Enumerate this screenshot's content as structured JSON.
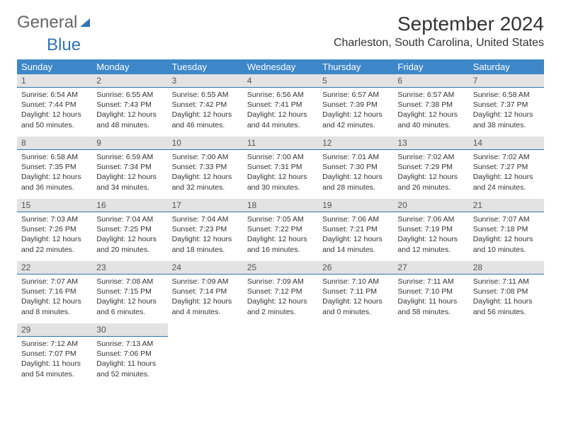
{
  "brand": {
    "text1": "General",
    "text2": "Blue"
  },
  "title": "September 2024",
  "location": "Charleston, South Carolina, United States",
  "colors": {
    "header_bg": "#3d87c9",
    "daynum_bg": "#e3e3e3",
    "divider": "#2f73b5",
    "text": "#333333",
    "background": "#ffffff"
  },
  "day_headers": [
    "Sunday",
    "Monday",
    "Tuesday",
    "Wednesday",
    "Thursday",
    "Friday",
    "Saturday"
  ],
  "days": [
    {
      "n": 1,
      "sunrise": "6:54 AM",
      "sunset": "7:44 PM",
      "dl_h": 12,
      "dl_m": 50
    },
    {
      "n": 2,
      "sunrise": "6:55 AM",
      "sunset": "7:43 PM",
      "dl_h": 12,
      "dl_m": 48
    },
    {
      "n": 3,
      "sunrise": "6:55 AM",
      "sunset": "7:42 PM",
      "dl_h": 12,
      "dl_m": 46
    },
    {
      "n": 4,
      "sunrise": "6:56 AM",
      "sunset": "7:41 PM",
      "dl_h": 12,
      "dl_m": 44
    },
    {
      "n": 5,
      "sunrise": "6:57 AM",
      "sunset": "7:39 PM",
      "dl_h": 12,
      "dl_m": 42
    },
    {
      "n": 6,
      "sunrise": "6:57 AM",
      "sunset": "7:38 PM",
      "dl_h": 12,
      "dl_m": 40
    },
    {
      "n": 7,
      "sunrise": "6:58 AM",
      "sunset": "7:37 PM",
      "dl_h": 12,
      "dl_m": 38
    },
    {
      "n": 8,
      "sunrise": "6:58 AM",
      "sunset": "7:35 PM",
      "dl_h": 12,
      "dl_m": 36
    },
    {
      "n": 9,
      "sunrise": "6:59 AM",
      "sunset": "7:34 PM",
      "dl_h": 12,
      "dl_m": 34
    },
    {
      "n": 10,
      "sunrise": "7:00 AM",
      "sunset": "7:33 PM",
      "dl_h": 12,
      "dl_m": 32
    },
    {
      "n": 11,
      "sunrise": "7:00 AM",
      "sunset": "7:31 PM",
      "dl_h": 12,
      "dl_m": 30
    },
    {
      "n": 12,
      "sunrise": "7:01 AM",
      "sunset": "7:30 PM",
      "dl_h": 12,
      "dl_m": 28
    },
    {
      "n": 13,
      "sunrise": "7:02 AM",
      "sunset": "7:29 PM",
      "dl_h": 12,
      "dl_m": 26
    },
    {
      "n": 14,
      "sunrise": "7:02 AM",
      "sunset": "7:27 PM",
      "dl_h": 12,
      "dl_m": 24
    },
    {
      "n": 15,
      "sunrise": "7:03 AM",
      "sunset": "7:26 PM",
      "dl_h": 12,
      "dl_m": 22
    },
    {
      "n": 16,
      "sunrise": "7:04 AM",
      "sunset": "7:25 PM",
      "dl_h": 12,
      "dl_m": 20
    },
    {
      "n": 17,
      "sunrise": "7:04 AM",
      "sunset": "7:23 PM",
      "dl_h": 12,
      "dl_m": 18
    },
    {
      "n": 18,
      "sunrise": "7:05 AM",
      "sunset": "7:22 PM",
      "dl_h": 12,
      "dl_m": 16
    },
    {
      "n": 19,
      "sunrise": "7:06 AM",
      "sunset": "7:21 PM",
      "dl_h": 12,
      "dl_m": 14
    },
    {
      "n": 20,
      "sunrise": "7:06 AM",
      "sunset": "7:19 PM",
      "dl_h": 12,
      "dl_m": 12
    },
    {
      "n": 21,
      "sunrise": "7:07 AM",
      "sunset": "7:18 PM",
      "dl_h": 12,
      "dl_m": 10
    },
    {
      "n": 22,
      "sunrise": "7:07 AM",
      "sunset": "7:16 PM",
      "dl_h": 12,
      "dl_m": 8
    },
    {
      "n": 23,
      "sunrise": "7:08 AM",
      "sunset": "7:15 PM",
      "dl_h": 12,
      "dl_m": 6
    },
    {
      "n": 24,
      "sunrise": "7:09 AM",
      "sunset": "7:14 PM",
      "dl_h": 12,
      "dl_m": 4
    },
    {
      "n": 25,
      "sunrise": "7:09 AM",
      "sunset": "7:12 PM",
      "dl_h": 12,
      "dl_m": 2
    },
    {
      "n": 26,
      "sunrise": "7:10 AM",
      "sunset": "7:11 PM",
      "dl_h": 12,
      "dl_m": 0
    },
    {
      "n": 27,
      "sunrise": "7:11 AM",
      "sunset": "7:10 PM",
      "dl_h": 11,
      "dl_m": 58
    },
    {
      "n": 28,
      "sunrise": "7:11 AM",
      "sunset": "7:08 PM",
      "dl_h": 11,
      "dl_m": 56
    },
    {
      "n": 29,
      "sunrise": "7:12 AM",
      "sunset": "7:07 PM",
      "dl_h": 11,
      "dl_m": 54
    },
    {
      "n": 30,
      "sunrise": "7:13 AM",
      "sunset": "7:06 PM",
      "dl_h": 11,
      "dl_m": 52
    }
  ],
  "labels": {
    "sunrise": "Sunrise:",
    "sunset": "Sunset:",
    "daylight": "Daylight:"
  }
}
